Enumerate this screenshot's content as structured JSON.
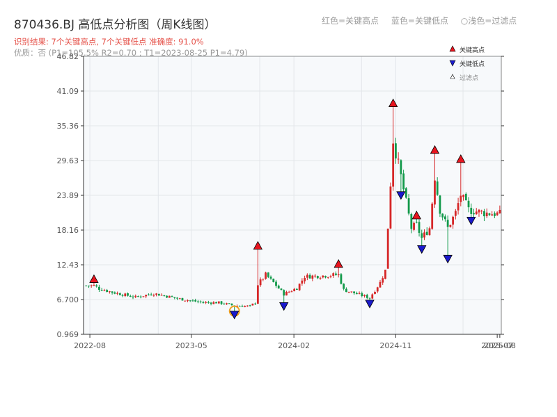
{
  "title": "870436.BJ 高低点分析图（周K线图）",
  "subtitle": "识别结果: 7个关键高点, 7个关键低点   准确度: 91.0%",
  "quality": "优质：否  (P1=105.5%  R2=0.70 ; T1=2023-08-25 P1=4.79)",
  "top_legend": {
    "high": "红色=关键高点",
    "low": "蓝色=关键低点",
    "filtered": "○浅色=过滤点"
  },
  "colors": {
    "up": "#d62728",
    "down": "#12994a",
    "high_marker": "#e8141e",
    "low_marker": "#1a1acc",
    "filtered_ring": "#f0a020",
    "plot_bg": "#f7f9fb",
    "grid": "#e3e6ea"
  },
  "chart_data": {
    "type": "candlestick",
    "title": "870436.BJ 高低点分析图（周K线图）",
    "xlabel": "",
    "ylabel": "",
    "ylim": [
      0.969,
      46.82
    ],
    "y_ticks": [
      "0.969",
      "6.700",
      "12.43",
      "18.16",
      "23.89",
      "29.63",
      "35.36",
      "41.09",
      "46.82"
    ],
    "x_ticks": [
      "2022-08",
      "2023-05",
      "2024-02",
      "2024-11",
      "2025-07",
      "2025-08"
    ],
    "grid": true,
    "legend_position": "top-right",
    "legend": [
      {
        "label": "关键高点",
        "marker": "red-up-triangle"
      },
      {
        "label": "关键低点",
        "marker": "blue-down-triangle"
      },
      {
        "label": "过滤点",
        "marker": "hollow-triangle"
      }
    ],
    "key_highs": [
      {
        "date": "2022-08-12",
        "price": 9.5
      },
      {
        "date": "2023-10-27",
        "price": 15.0
      },
      {
        "date": "2024-05-31",
        "price": 12.0
      },
      {
        "date": "2024-10-25",
        "price": 38.5
      },
      {
        "date": "2024-12-27",
        "price": 20.0
      },
      {
        "date": "2025-02-14",
        "price": 30.8
      },
      {
        "date": "2025-04-25",
        "price": 29.3
      }
    ],
    "key_lows": [
      {
        "date": "2023-08-25",
        "price": 4.79
      },
      {
        "date": "2024-01-05",
        "price": 6.2
      },
      {
        "date": "2024-08-23",
        "price": 6.6
      },
      {
        "date": "2024-11-15",
        "price": 24.5
      },
      {
        "date": "2025-01-10",
        "price": 15.6
      },
      {
        "date": "2025-03-21",
        "price": 14.0
      },
      {
        "date": "2025-05-23",
        "price": 20.3
      }
    ],
    "filtered_points": [
      {
        "date": "2023-08-25",
        "price": 4.79
      }
    ],
    "price_path": [
      {
        "date": "2022-07-22",
        "price": 9.0
      },
      {
        "date": "2022-08-12",
        "price": 9.0
      },
      {
        "date": "2022-08-26",
        "price": 8.5
      },
      {
        "date": "2022-10-07",
        "price": 7.8
      },
      {
        "date": "2022-12-02",
        "price": 7.1
      },
      {
        "date": "2023-01-20",
        "price": 7.7
      },
      {
        "date": "2023-03-31",
        "price": 6.8
      },
      {
        "date": "2023-06-02",
        "price": 6.2
      },
      {
        "date": "2023-07-14",
        "price": 6.2
      },
      {
        "date": "2023-08-25",
        "price": 5.7
      },
      {
        "date": "2023-10-06",
        "price": 5.6
      },
      {
        "date": "2023-10-20",
        "price": 6.2
      },
      {
        "date": "2023-10-27",
        "price": 9.2
      },
      {
        "date": "2023-11-17",
        "price": 10.8
      },
      {
        "date": "2023-12-08",
        "price": 9.5
      },
      {
        "date": "2024-01-05",
        "price": 7.6
      },
      {
        "date": "2024-02-09",
        "price": 8.6
      },
      {
        "date": "2024-03-01",
        "price": 10.5
      },
      {
        "date": "2024-04-12",
        "price": 10.6
      },
      {
        "date": "2024-05-31",
        "price": 10.8
      },
      {
        "date": "2024-06-14",
        "price": 8.3
      },
      {
        "date": "2024-07-26",
        "price": 7.5
      },
      {
        "date": "2024-08-23",
        "price": 7.0
      },
      {
        "date": "2024-09-20",
        "price": 9.5
      },
      {
        "date": "2024-10-04",
        "price": 11.5
      },
      {
        "date": "2024-10-25",
        "price": 33.0
      },
      {
        "date": "2024-11-15",
        "price": 27.0
      },
      {
        "date": "2024-12-13",
        "price": 18.5
      },
      {
        "date": "2024-12-27",
        "price": 19.0
      },
      {
        "date": "2025-01-10",
        "price": 16.8
      },
      {
        "date": "2025-01-31",
        "price": 18.5
      },
      {
        "date": "2025-02-14",
        "price": 27.0
      },
      {
        "date": "2025-02-28",
        "price": 21.5
      },
      {
        "date": "2025-03-21",
        "price": 18.5
      },
      {
        "date": "2025-04-11",
        "price": 21.0
      },
      {
        "date": "2025-04-25",
        "price": 24.0
      },
      {
        "date": "2025-05-16",
        "price": 21.5
      },
      {
        "date": "2025-06-27",
        "price": 21.0
      },
      {
        "date": "2025-08-08",
        "price": 20.8
      }
    ]
  }
}
